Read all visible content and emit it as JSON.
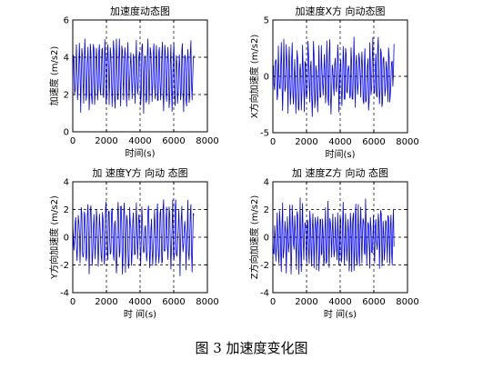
{
  "caption": "图 3  加速度变化图",
  "colors": {
    "line": "#0000ff",
    "axes": "#000000",
    "grid": "#000000"
  },
  "chart_data": [
    {
      "type": "line",
      "title": "加速度动态图",
      "xlabel": "时间(s)",
      "ylabel": "加速度 (m/s2)",
      "xlim": [
        0,
        8000
      ],
      "ylim": [
        0,
        6
      ],
      "xticks": [
        0,
        2000,
        4000,
        6000,
        8000
      ],
      "yticks": [
        0,
        2,
        4,
        6
      ],
      "grid": "dashed",
      "series": [
        {
          "x_range": [
            0,
            7200
          ],
          "samples": 200,
          "center": 3.1,
          "amplitude": 1.6,
          "period": 170,
          "noise": 0.55,
          "min": 0.1,
          "max": 5.0
        }
      ]
    },
    {
      "type": "line",
      "title": "加速度X方 向动态图",
      "xlabel": "时间(s)",
      "ylabel": "X方向加速度 (m/s2)",
      "xlim": [
        0,
        8000
      ],
      "ylim": [
        -5,
        5
      ],
      "xticks": [
        0,
        2000,
        4000,
        6000,
        8000
      ],
      "yticks": [
        -5,
        0,
        5
      ],
      "grid": "dashed",
      "series": [
        {
          "x_range": [
            0,
            7200
          ],
          "samples": 200,
          "center": 0.0,
          "amplitude": 2.3,
          "period": 160,
          "noise": 1.4,
          "min": -4.5,
          "max": 4.8
        }
      ]
    },
    {
      "type": "line",
      "title": "加 速度Y方 向动 态图",
      "xlabel": "时 间(s)",
      "ylabel": "Y方向加速度 (m/s2)",
      "xlim": [
        0,
        8000
      ],
      "ylim": [
        -4,
        4
      ],
      "xticks": [
        0,
        2000,
        4000,
        6000,
        8000
      ],
      "yticks": [
        -4,
        -2,
        0,
        2,
        4
      ],
      "grid": "dashed",
      "series": [
        {
          "x_range": [
            0,
            7200
          ],
          "samples": 200,
          "center": 0.0,
          "amplitude": 1.9,
          "period": 180,
          "noise": 1.0,
          "min": -3.7,
          "max": 3.6
        }
      ]
    },
    {
      "type": "line",
      "title": "加 速度Z方 向动 态图",
      "xlabel": "时 间(s)",
      "ylabel": "Z方向加速度 (m/s2)",
      "xlim": [
        0,
        8000
      ],
      "ylim": [
        -4,
        4
      ],
      "xticks": [
        0,
        2000,
        4000,
        6000,
        8000
      ],
      "yticks": [
        -4,
        -2,
        0,
        2,
        4
      ],
      "grid": "dashed",
      "series": [
        {
          "x_range": [
            0,
            7200
          ],
          "samples": 200,
          "center": 0.0,
          "amplitude": 1.9,
          "period": 150,
          "noise": 1.0,
          "min": -3.8,
          "max": 3.5
        }
      ]
    }
  ]
}
